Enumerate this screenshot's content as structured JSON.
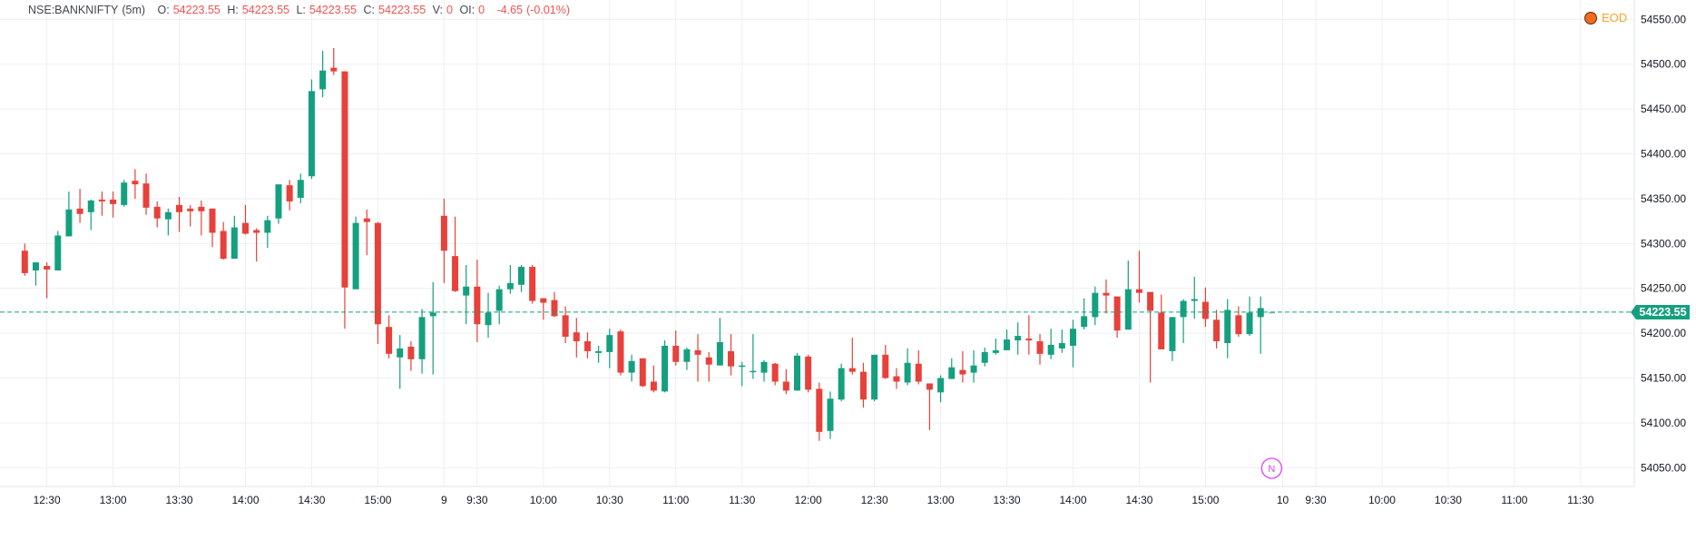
{
  "header": {
    "symbol": "NSE:BANKNIFTY",
    "interval": "(5m)",
    "o_label": "O:",
    "o": "54223.55",
    "h_label": "H:",
    "h": "54223.55",
    "l_label": "L:",
    "l": "54223.55",
    "c_label": "C:",
    "c": "54223.55",
    "v_label": "V:",
    "v": "0",
    "oi_label": "OI:",
    "oi": "0",
    "change": "-4.65",
    "change_pct": "(-0.01%)"
  },
  "badge": {
    "label": "EOD",
    "color": "#f26b1d",
    "text_color": "#f5a623"
  },
  "event_marker": {
    "label": "N",
    "color": "#e040fb"
  },
  "last_price": {
    "value": "54223.55",
    "price": 54223.55
  },
  "colors": {
    "up": "#14a07f",
    "down": "#e8403a",
    "grid": "#eeeff2",
    "axis": "#e0e3eb"
  },
  "chart_data": {
    "type": "candlestick",
    "title": "",
    "ylim": [
      54029.1,
      54571.6
    ],
    "y_ticks": [
      "54550.00",
      "54500.00",
      "54450.00",
      "54400.00",
      "54350.00",
      "54300.00",
      "54250.00",
      "54200.00",
      "54150.00",
      "54100.00",
      "54050.00"
    ],
    "x_ticks": [
      {
        "label": "12:30",
        "session": 0,
        "time": "12:30"
      },
      {
        "label": "13:00",
        "session": 0,
        "time": "13:00"
      },
      {
        "label": "13:30",
        "session": 0,
        "time": "13:30"
      },
      {
        "label": "14:00",
        "session": 0,
        "time": "14:00"
      },
      {
        "label": "14:30",
        "session": 0,
        "time": "14:30"
      },
      {
        "label": "15:00",
        "session": 0,
        "time": "15:00"
      },
      {
        "label": "9",
        "session": 1,
        "time": "09:15"
      },
      {
        "label": "9:30",
        "session": 1,
        "time": "09:30"
      },
      {
        "label": "10:00",
        "session": 1,
        "time": "10:00"
      },
      {
        "label": "10:30",
        "session": 1,
        "time": "10:30"
      },
      {
        "label": "11:00",
        "session": 1,
        "time": "11:00"
      },
      {
        "label": "11:30",
        "session": 1,
        "time": "11:30"
      },
      {
        "label": "12:00",
        "session": 1,
        "time": "12:00"
      },
      {
        "label": "12:30",
        "session": 1,
        "time": "12:30"
      },
      {
        "label": "13:00",
        "session": 1,
        "time": "13:00"
      },
      {
        "label": "13:30",
        "session": 1,
        "time": "13:30"
      },
      {
        "label": "14:00",
        "session": 1,
        "time": "14:00"
      },
      {
        "label": "14:30",
        "session": 1,
        "time": "14:30"
      },
      {
        "label": "15:00",
        "session": 1,
        "time": "15:00"
      },
      {
        "label": "10",
        "session": 2,
        "time": "09:15"
      },
      {
        "label": "9:30",
        "session": 2,
        "time": "09:30"
      },
      {
        "label": "10:00",
        "session": 2,
        "time": "10:00"
      },
      {
        "label": "10:30",
        "session": 2,
        "time": "10:30"
      },
      {
        "label": "11:00",
        "session": 2,
        "time": "11:00"
      },
      {
        "label": "11:30",
        "session": 2,
        "time": "11:30"
      }
    ],
    "sessions": [
      {
        "start": "12:20",
        "ohlc": [
          [
            54292,
            54300,
            54264,
            54267
          ],
          [
            54270,
            54279,
            54253,
            54279
          ],
          [
            54275,
            54279,
            54239,
            54271
          ],
          [
            54270,
            54314,
            54270,
            54309
          ],
          [
            54308,
            54358,
            54308,
            54338
          ],
          [
            54339,
            54361,
            54323,
            54333
          ],
          [
            54335,
            54349,
            54315,
            54348
          ],
          [
            54349,
            54358,
            54331,
            54347
          ],
          [
            54349,
            54358,
            54329,
            54344
          ],
          [
            54343,
            54371,
            54341,
            54368
          ],
          [
            54370,
            54383,
            54350,
            54366
          ],
          [
            54367,
            54378,
            54332,
            54340
          ],
          [
            54341,
            54347,
            54318,
            54328
          ],
          [
            54327,
            54339,
            54309,
            54335
          ],
          [
            54343,
            54352,
            54313,
            54335
          ],
          [
            54339,
            54343,
            54319,
            54336
          ],
          [
            54341,
            54348,
            54309,
            54336
          ],
          [
            54339,
            54339,
            54296,
            54312
          ],
          [
            54314,
            54324,
            54282,
            54283
          ],
          [
            54283,
            54331,
            54283,
            54318
          ],
          [
            54323,
            54343,
            54310,
            54311
          ],
          [
            54315,
            54317,
            54280,
            54312
          ],
          [
            54312,
            54331,
            54295,
            54326
          ],
          [
            54328,
            54366,
            54322,
            54366
          ],
          [
            54365,
            54371,
            54337,
            54347
          ],
          [
            54351,
            54378,
            54345,
            54371
          ],
          [
            54375,
            54483,
            54372,
            54470
          ],
          [
            54472,
            54515,
            54463,
            54493
          ],
          [
            54496,
            54518,
            54488,
            54492
          ],
          [
            54492,
            54492,
            54205,
            54251
          ],
          [
            54249,
            54330,
            54249,
            54323
          ],
          [
            54328,
            54338,
            54287,
            54324
          ],
          [
            54323,
            54324,
            54188,
            54210
          ],
          [
            54207,
            54220,
            54172,
            54177
          ],
          [
            54173,
            54198,
            54138,
            54183
          ],
          [
            54185,
            54191,
            54158,
            54171
          ],
          [
            54171,
            54227,
            54155,
            54218
          ],
          [
            54219,
            54257,
            54154,
            54223
          ]
        ]
      },
      {
        "start": "09:15",
        "ohlc": [
          [
            54331,
            54350,
            54256,
            54292
          ],
          [
            54286,
            54330,
            54246,
            54247
          ],
          [
            54242,
            54276,
            54210,
            54252
          ],
          [
            54252,
            54282,
            54190,
            54210
          ],
          [
            54209,
            54245,
            54195,
            54223
          ],
          [
            54225,
            54253,
            54210,
            54249
          ],
          [
            54249,
            54276,
            54244,
            54256
          ],
          [
            54254,
            54276,
            54246,
            54274
          ],
          [
            54274,
            54276,
            54233,
            54236
          ],
          [
            54239,
            54239,
            54215,
            54234
          ],
          [
            54237,
            54246,
            54218,
            54219
          ],
          [
            54220,
            54230,
            54189,
            54196
          ],
          [
            54201,
            54217,
            54173,
            54191
          ],
          [
            54191,
            54201,
            54172,
            54180
          ],
          [
            54178,
            54186,
            54167,
            54180
          ],
          [
            54179,
            54205,
            54161,
            54198
          ],
          [
            54202,
            54204,
            54153,
            54156
          ],
          [
            54156,
            54176,
            54146,
            54169
          ],
          [
            54172,
            54172,
            54140,
            54141
          ],
          [
            54146,
            54164,
            54134,
            54136
          ],
          [
            54135,
            54192,
            54134,
            54186
          ],
          [
            54186,
            54203,
            54164,
            54168
          ],
          [
            54168,
            54184,
            54159,
            54182
          ],
          [
            54181,
            54199,
            54146,
            54176
          ],
          [
            54173,
            54179,
            54146,
            54165
          ],
          [
            54164,
            54217,
            54164,
            54190
          ],
          [
            54180,
            54199,
            54153,
            54163
          ],
          [
            54163,
            54168,
            54141,
            54164
          ],
          [
            54157,
            54199,
            54149,
            54158
          ],
          [
            54156,
            54170,
            54146,
            54168
          ],
          [
            54166,
            54167,
            54142,
            54146
          ],
          [
            54146,
            54160,
            54132,
            54136
          ],
          [
            54136,
            54178,
            54136,
            54175
          ],
          [
            54174,
            54176,
            54134,
            54137
          ],
          [
            54138,
            54145,
            54080,
            54090
          ],
          [
            54091,
            54135,
            54082,
            54127
          ],
          [
            54126,
            54166,
            54124,
            54161
          ],
          [
            54161,
            54195,
            54154,
            54157
          ],
          [
            54157,
            54167,
            54117,
            54126
          ],
          [
            54126,
            54176,
            54124,
            54176
          ],
          [
            54176,
            54187,
            54149,
            54150
          ],
          [
            54152,
            54161,
            54138,
            54146
          ],
          [
            54145,
            54183,
            54142,
            54167
          ],
          [
            54166,
            54181,
            54143,
            54146
          ],
          [
            54144,
            54144,
            54092,
            54137
          ],
          [
            54134,
            54153,
            54123,
            54150
          ],
          [
            54149,
            54172,
            54149,
            54162
          ],
          [
            54159,
            54180,
            54145,
            54154
          ],
          [
            54156,
            54181,
            54145,
            54164
          ],
          [
            54167,
            54184,
            54163,
            54179
          ],
          [
            54178,
            54194,
            54176,
            54181
          ],
          [
            54181,
            54204,
            54181,
            54193
          ],
          [
            54192,
            54212,
            54176,
            54197
          ],
          [
            54194,
            54220,
            54176,
            54192
          ],
          [
            54191,
            54199,
            54165,
            54177
          ],
          [
            54176,
            54205,
            54171,
            54187
          ],
          [
            54183,
            54204,
            54178,
            54189
          ],
          [
            54186,
            54215,
            54162,
            54205
          ],
          [
            54207,
            54239,
            54204,
            54219
          ],
          [
            54218,
            54252,
            54209,
            54245
          ],
          [
            54245,
            54260,
            54222,
            54242
          ],
          [
            54241,
            54241,
            54195,
            54203
          ],
          [
            54204,
            54281,
            54204,
            54249
          ],
          [
            54249,
            54292,
            54234,
            54245
          ],
          [
            54246,
            54246,
            54145,
            54225
          ],
          [
            54223,
            54243,
            54182,
            54182
          ],
          [
            54180,
            54218,
            54169,
            54218
          ],
          [
            54218,
            54238,
            54189,
            54236
          ],
          [
            54236,
            54263,
            54216,
            54238
          ],
          [
            54235,
            54251,
            54207,
            54216
          ],
          [
            54215,
            54226,
            54183,
            54191
          ],
          [
            54189,
            54238,
            54172,
            54226
          ],
          [
            54220,
            54230,
            54196,
            54199
          ],
          [
            54199,
            54241,
            54197,
            54223
          ],
          [
            54218,
            54241,
            54177,
            54228
          ],
          [
            54223.55,
            54223.55,
            54223.55,
            54223.55
          ]
        ]
      },
      {
        "start": "09:15",
        "ohlc": []
      }
    ]
  }
}
